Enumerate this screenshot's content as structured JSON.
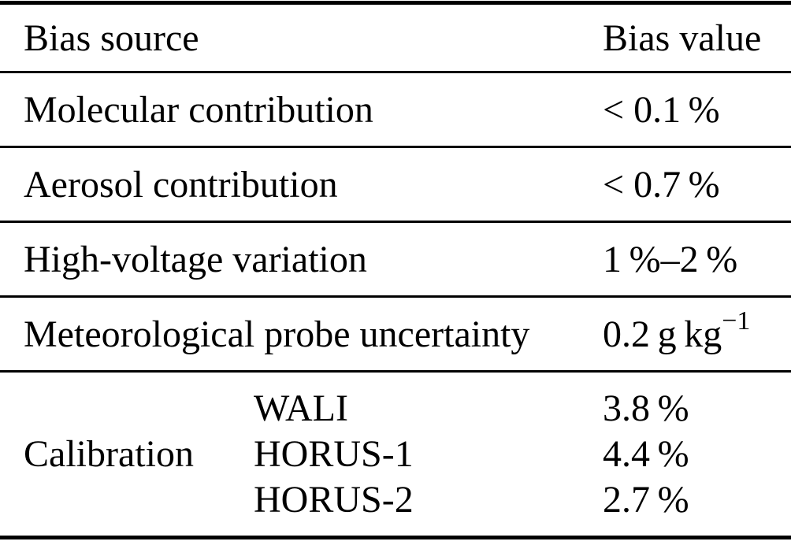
{
  "table": {
    "header": {
      "source": "Bias source",
      "value": "Bias value"
    },
    "rows": [
      {
        "label": "Molecular contribution",
        "value": "< 0.1 %"
      },
      {
        "label": "Aerosol contribution",
        "value": "< 0.7 %"
      },
      {
        "label": "High-voltage variation",
        "value": "1 %–2 %"
      },
      {
        "label": "Meteorological probe uncertainty",
        "value": "0.2 g kg",
        "value_sup": "−1"
      }
    ],
    "calibration": {
      "label": "Calibration",
      "items": [
        {
          "name": "WALI",
          "value": "3.8 %"
        },
        {
          "name": "HORUS-1",
          "value": "4.4 %"
        },
        {
          "name": "HORUS-2",
          "value": "2.7 %"
        }
      ]
    },
    "colors": {
      "text": "#000000",
      "rule": "#000000",
      "background": "#ffffff"
    }
  }
}
